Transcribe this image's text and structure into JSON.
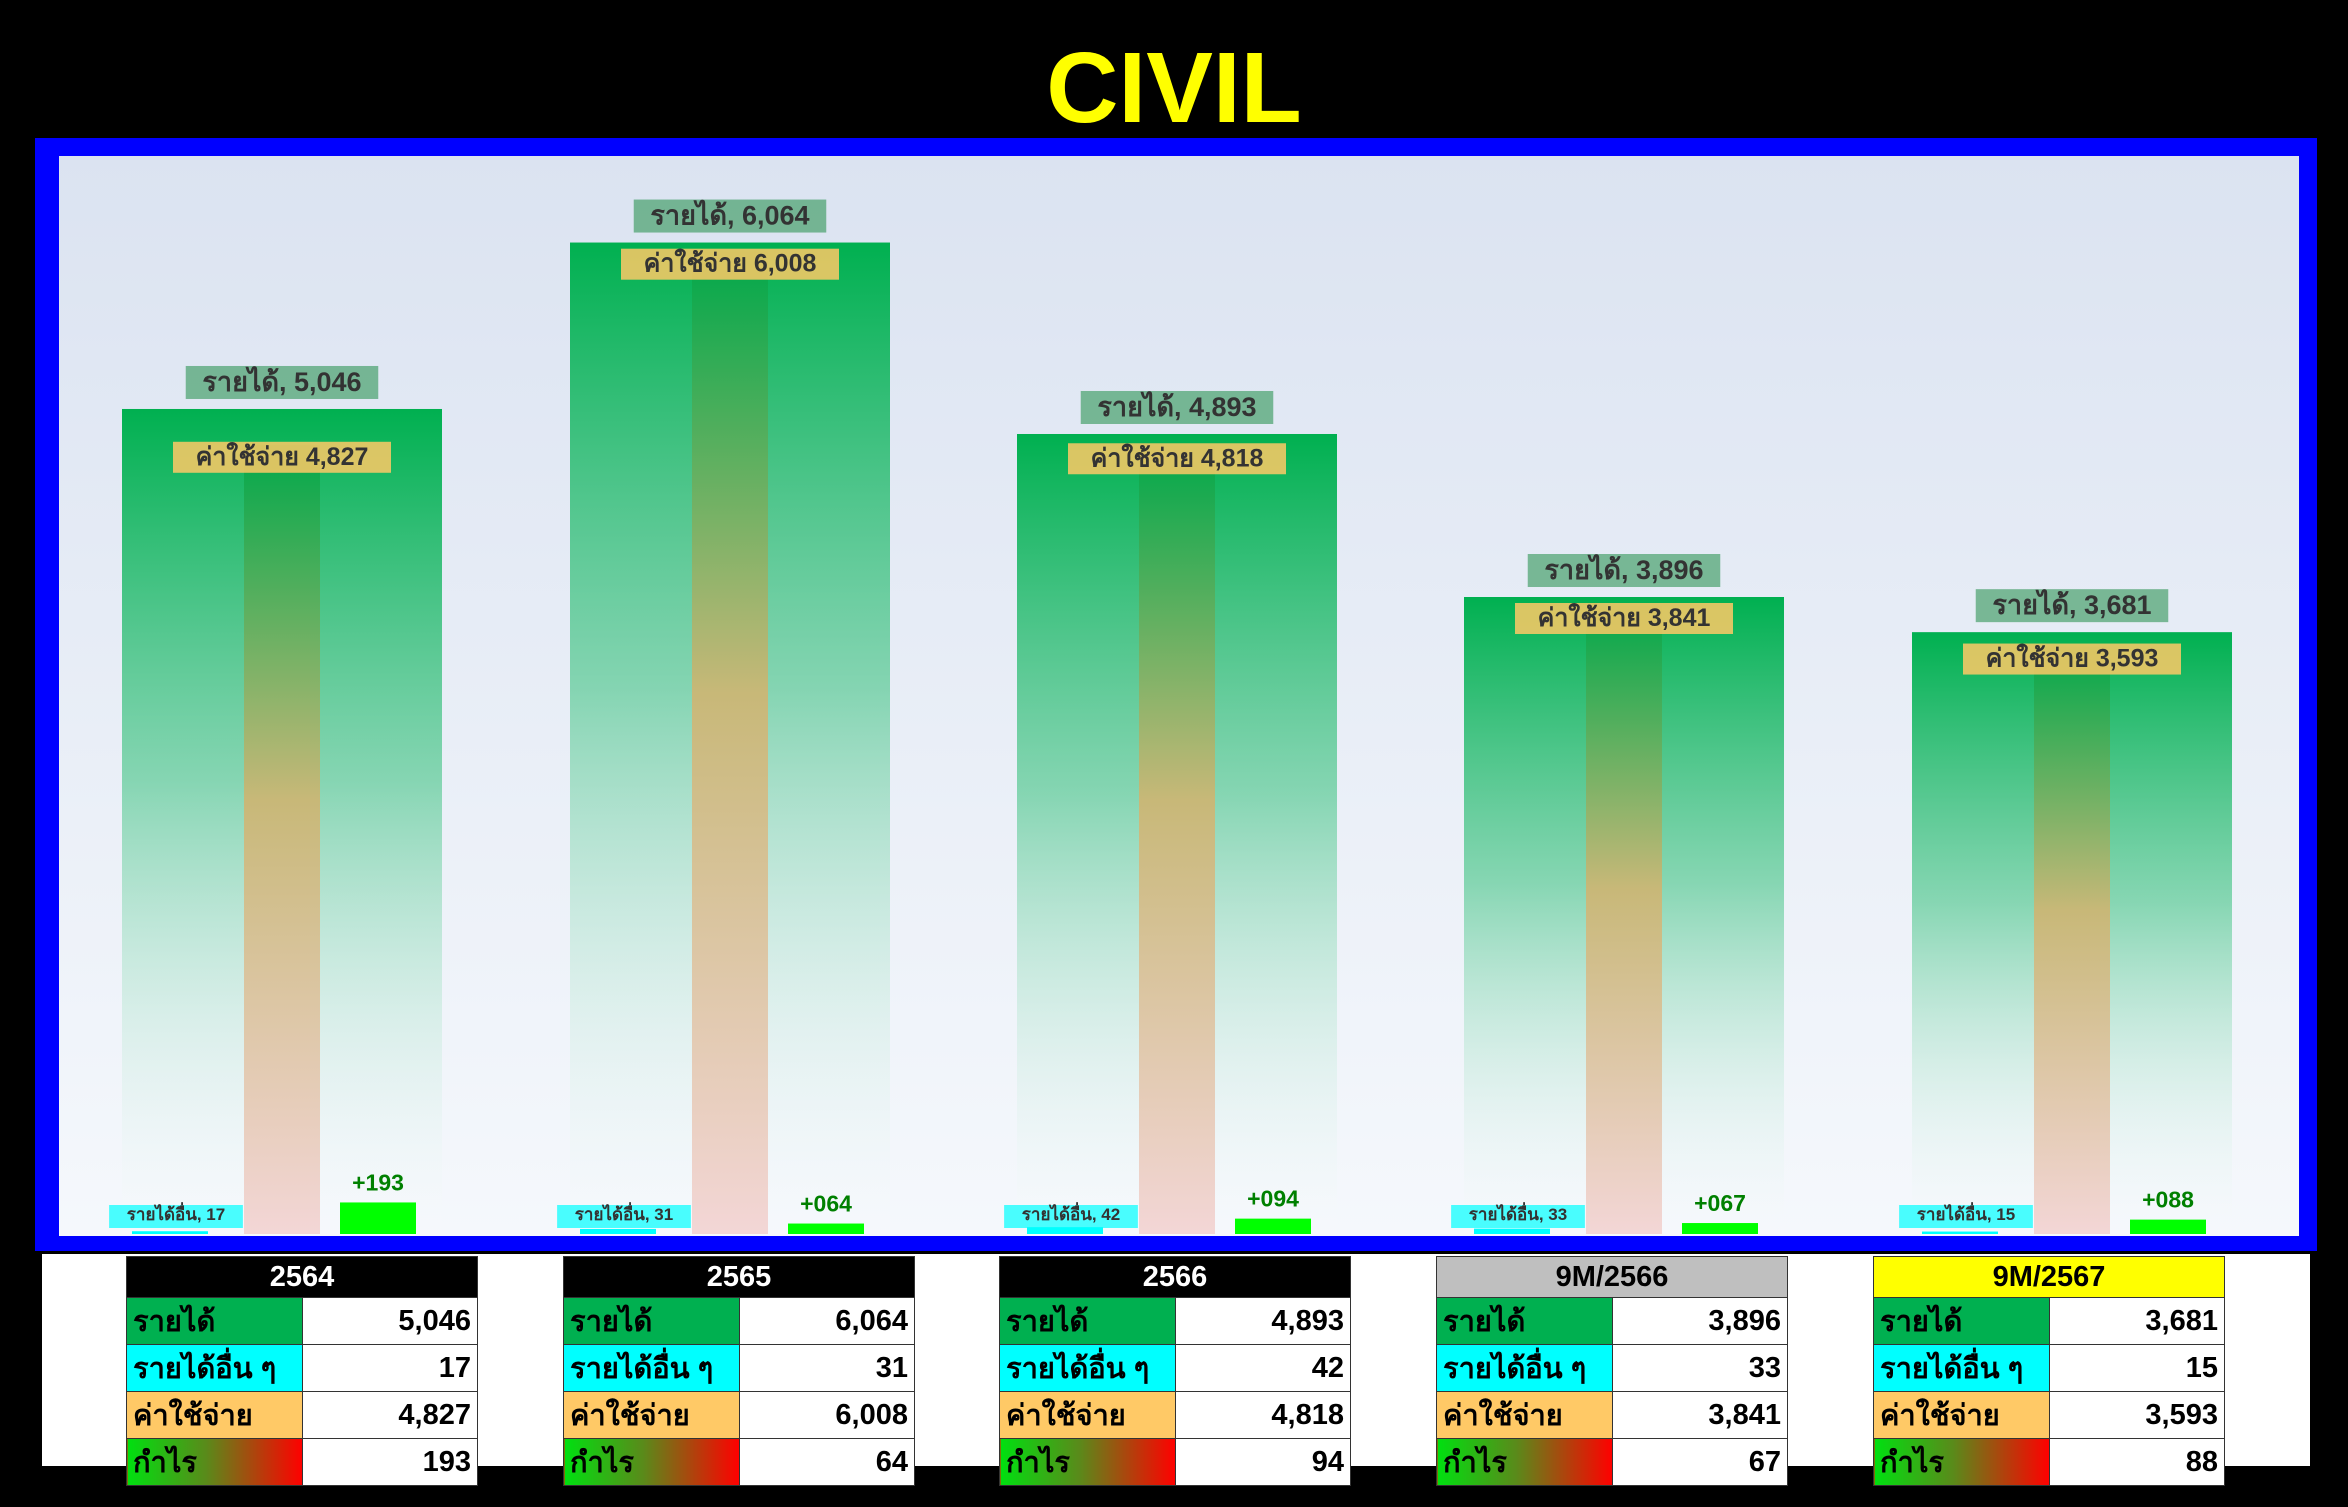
{
  "title": "CIVIL",
  "colors": {
    "title": "#FFFF00",
    "frame": "#0000FF",
    "income": "#00B050",
    "other_income": "#00FFFF",
    "expense": "#FFC966",
    "profit": "#00FF00"
  },
  "chart_data": {
    "type": "bar",
    "categories": [
      "2564",
      "2565",
      "2566",
      "9M/2566",
      "9M/2567"
    ],
    "ylim": [
      0,
      6500
    ],
    "grid": false,
    "series": [
      {
        "name": "รายได้",
        "values": [
          5046,
          6064,
          4893,
          3896,
          3681
        ]
      },
      {
        "name": "ค่าใช้จ่าย",
        "values": [
          4827,
          6008,
          4818,
          3841,
          3593
        ]
      },
      {
        "name": "รายได้อื่น",
        "values": [
          17,
          31,
          42,
          33,
          15
        ]
      },
      {
        "name": "กำไร",
        "values": [
          193,
          64,
          94,
          67,
          88
        ]
      }
    ],
    "data_labels": {
      "income": [
        "รายได้, 5,046",
        "รายได้, 6,064",
        "รายได้, 4,893",
        "รายได้, 3,896",
        "รายได้, 3,681"
      ],
      "expense": [
        "ค่าใช้จ่าย 4,827",
        "ค่าใช้จ่าย 6,008",
        "ค่าใช้จ่าย 4,818",
        "ค่าใช้จ่าย 3,841",
        "ค่าใช้จ่าย 3,593"
      ],
      "other": [
        "รายได้อื่น, 17",
        "รายได้อื่น, 31",
        "รายได้อื่น, 42",
        "รายได้อื่น, 33",
        "รายได้อื่น, 15"
      ],
      "profit": [
        "+193",
        "+064",
        "+094",
        "+067",
        "+088"
      ]
    }
  },
  "tables": [
    {
      "header": "2564",
      "header_bg": "#000000",
      "header_color": "#FFFFFF",
      "rows": [
        [
          "รายได้",
          "5,046"
        ],
        [
          "รายได้อื่น ๆ",
          "17"
        ],
        [
          "ค่าใช้จ่าย",
          "4,827"
        ],
        [
          "กำไร",
          "193"
        ]
      ]
    },
    {
      "header": "2565",
      "header_bg": "#000000",
      "header_color": "#FFFFFF",
      "rows": [
        [
          "รายได้",
          "6,064"
        ],
        [
          "รายได้อื่น ๆ",
          "31"
        ],
        [
          "ค่าใช้จ่าย",
          "6,008"
        ],
        [
          "กำไร",
          "64"
        ]
      ]
    },
    {
      "header": "2566",
      "header_bg": "#000000",
      "header_color": "#FFFFFF",
      "rows": [
        [
          "รายได้",
          "4,893"
        ],
        [
          "รายได้อื่น ๆ",
          "42"
        ],
        [
          "ค่าใช้จ่าย",
          "4,818"
        ],
        [
          "กำไร",
          "94"
        ]
      ]
    },
    {
      "header": "9M/2566",
      "header_bg": "#BFBFBF",
      "header_color": "#000000",
      "rows": [
        [
          "รายได้",
          "3,896"
        ],
        [
          "รายได้อื่น ๆ",
          "33"
        ],
        [
          "ค่าใช้จ่าย",
          "3,841"
        ],
        [
          "กำไร",
          "67"
        ]
      ]
    },
    {
      "header": "9M/2567",
      "header_bg": "#FFFF00",
      "header_color": "#000000",
      "rows": [
        [
          "รายได้",
          "3,681"
        ],
        [
          "รายได้อื่น ๆ",
          "15"
        ],
        [
          "ค่าใช้จ่าย",
          "3,593"
        ],
        [
          "กำไร",
          "88"
        ]
      ]
    }
  ]
}
